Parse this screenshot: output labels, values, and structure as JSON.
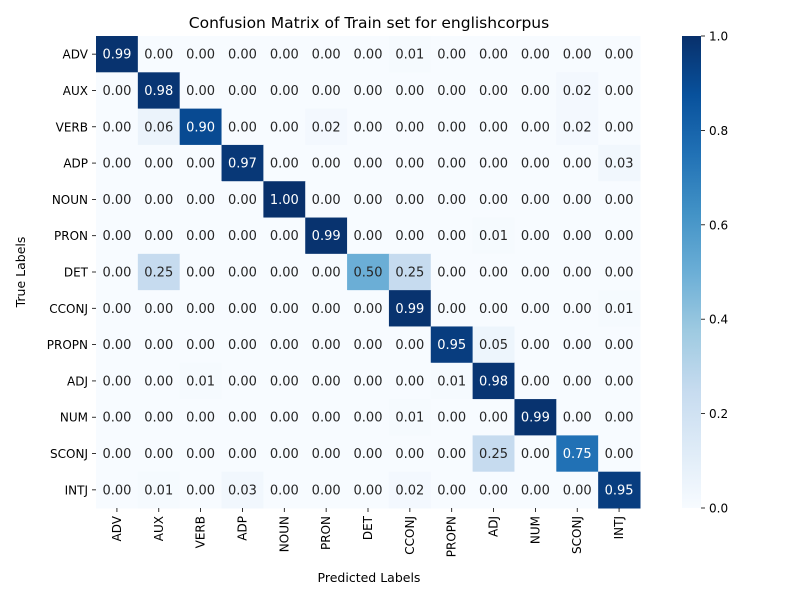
{
  "chart_data": {
    "type": "heatmap",
    "title": "Confusion Matrix of Train set for englishcorpus",
    "xlabel": "Predicted Labels",
    "ylabel": "True Labels",
    "x_categories": [
      "ADV",
      "AUX",
      "VERB",
      "ADP",
      "NOUN",
      "PRON",
      "DET",
      "CCONJ",
      "PROPN",
      "ADJ",
      "NUM",
      "SCONJ",
      "INTJ"
    ],
    "y_categories": [
      "ADV",
      "AUX",
      "VERB",
      "ADP",
      "NOUN",
      "PRON",
      "DET",
      "CCONJ",
      "PROPN",
      "ADJ",
      "NUM",
      "SCONJ",
      "INTJ"
    ],
    "values": [
      [
        0.99,
        0.0,
        0.0,
        0.0,
        0.0,
        0.0,
        0.0,
        0.01,
        0.0,
        0.0,
        0.0,
        0.0,
        0.0
      ],
      [
        0.0,
        0.98,
        0.0,
        0.0,
        0.0,
        0.0,
        0.0,
        0.0,
        0.0,
        0.0,
        0.0,
        0.02,
        0.0
      ],
      [
        0.0,
        0.06,
        0.9,
        0.0,
        0.0,
        0.02,
        0.0,
        0.0,
        0.0,
        0.0,
        0.0,
        0.02,
        0.0
      ],
      [
        0.0,
        0.0,
        0.0,
        0.97,
        0.0,
        0.0,
        0.0,
        0.0,
        0.0,
        0.0,
        0.0,
        0.0,
        0.03
      ],
      [
        0.0,
        0.0,
        0.0,
        0.0,
        1.0,
        0.0,
        0.0,
        0.0,
        0.0,
        0.0,
        0.0,
        0.0,
        0.0
      ],
      [
        0.0,
        0.0,
        0.0,
        0.0,
        0.0,
        0.99,
        0.0,
        0.0,
        0.0,
        0.01,
        0.0,
        0.0,
        0.0
      ],
      [
        0.0,
        0.25,
        0.0,
        0.0,
        0.0,
        0.0,
        0.5,
        0.25,
        0.0,
        0.0,
        0.0,
        0.0,
        0.0
      ],
      [
        0.0,
        0.0,
        0.0,
        0.0,
        0.0,
        0.0,
        0.0,
        0.99,
        0.0,
        0.0,
        0.0,
        0.0,
        0.01
      ],
      [
        0.0,
        0.0,
        0.0,
        0.0,
        0.0,
        0.0,
        0.0,
        0.0,
        0.95,
        0.05,
        0.0,
        0.0,
        0.0
      ],
      [
        0.0,
        0.0,
        0.01,
        0.0,
        0.0,
        0.0,
        0.0,
        0.0,
        0.01,
        0.98,
        0.0,
        0.0,
        0.0
      ],
      [
        0.0,
        0.0,
        0.0,
        0.0,
        0.0,
        0.0,
        0.0,
        0.01,
        0.0,
        0.0,
        0.99,
        0.0,
        0.0
      ],
      [
        0.0,
        0.0,
        0.0,
        0.0,
        0.0,
        0.0,
        0.0,
        0.0,
        0.0,
        0.25,
        0.0,
        0.75,
        0.0
      ],
      [
        0.0,
        0.01,
        0.0,
        0.03,
        0.0,
        0.0,
        0.0,
        0.02,
        0.0,
        0.0,
        0.0,
        0.0,
        0.95
      ]
    ],
    "colorbar": {
      "range": [
        0.0,
        1.0
      ],
      "ticks": [
        "0.0",
        "0.2",
        "0.4",
        "0.6",
        "0.8",
        "1.0"
      ],
      "colormap": "Blues"
    }
  }
}
